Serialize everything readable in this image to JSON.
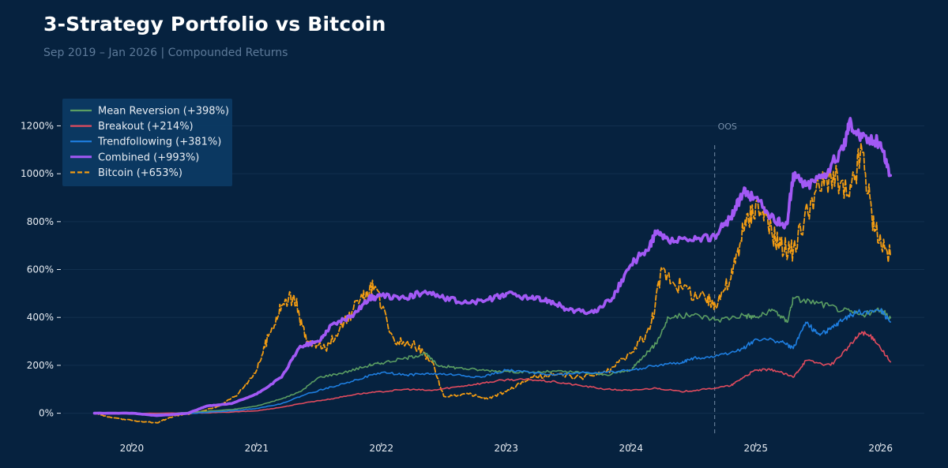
{
  "header": {
    "title": "3-Strategy Portfolio vs Bitcoin",
    "subtitle": "Sep 2019 – Jan 2026 | Compounded Returns"
  },
  "chart_data": {
    "type": "line",
    "title": "3-Strategy Portfolio vs Bitcoin",
    "subtitle": "Sep 2019 – Jan 2026 | Compounded Returns",
    "xlabel": "",
    "ylabel": "",
    "x_unit": "year",
    "xlim": [
      2019.45,
      2026.35
    ],
    "ylim": [
      -120,
      1330
    ],
    "x_ticks": [
      2020,
      2021,
      2022,
      2023,
      2024,
      2025,
      2026
    ],
    "x_tick_labels": [
      "2020",
      "2021",
      "2022",
      "2023",
      "2024",
      "2025",
      "2026"
    ],
    "y_ticks": [
      0,
      200,
      400,
      600,
      800,
      1000,
      1200
    ],
    "y_tick_labels": [
      "0%",
      "200%",
      "400%",
      "600%",
      "800%",
      "1000%",
      "1200%"
    ],
    "grid": "horizontal",
    "legend_position": "top-left",
    "annotations": [
      {
        "type": "vertical-dashed-line",
        "x": 2024.67,
        "label": "OOS"
      }
    ],
    "series": [
      {
        "name": "Mean Reversion (+398%)",
        "color": "#5b9e63",
        "style": "solid",
        "x": [
          2019.7,
          2020.0,
          2020.2,
          2020.5,
          2020.8,
          2021.0,
          2021.2,
          2021.35,
          2021.5,
          2021.7,
          2021.9,
          2022.0,
          2022.2,
          2022.35,
          2022.45,
          2022.6,
          2022.8,
          2023.0,
          2023.2,
          2023.4,
          2023.6,
          2023.8,
          2024.0,
          2024.1,
          2024.2,
          2024.3,
          2024.5,
          2024.7,
          2024.9,
          2025.0,
          2025.15,
          2025.25,
          2025.3,
          2025.5,
          2025.7,
          2025.85,
          2026.0,
          2026.08
        ],
        "y": [
          0,
          0,
          -5,
          5,
          15,
          30,
          60,
          90,
          150,
          170,
          200,
          210,
          230,
          250,
          200,
          190,
          180,
          175,
          170,
          175,
          170,
          160,
          180,
          240,
          290,
          400,
          410,
          390,
          410,
          400,
          430,
          380,
          480,
          460,
          430,
          410,
          430,
          398
        ]
      },
      {
        "name": "Breakout (+214%)",
        "color": "#e14b5e",
        "style": "solid",
        "x": [
          2019.7,
          2020.0,
          2020.5,
          2020.8,
          2021.0,
          2021.2,
          2021.4,
          2021.6,
          2021.8,
          2022.0,
          2022.2,
          2022.4,
          2022.6,
          2022.8,
          2023.0,
          2023.2,
          2023.4,
          2023.6,
          2023.8,
          2024.0,
          2024.2,
          2024.4,
          2024.6,
          2024.8,
          2024.9,
          2025.0,
          2025.15,
          2025.3,
          2025.4,
          2025.6,
          2025.75,
          2025.85,
          2025.95,
          2026.08
        ],
        "y": [
          0,
          0,
          0,
          5,
          10,
          25,
          45,
          60,
          80,
          90,
          100,
          95,
          110,
          125,
          140,
          140,
          130,
          115,
          100,
          95,
          105,
          90,
          100,
          115,
          150,
          180,
          180,
          150,
          220,
          200,
          280,
          340,
          310,
          214
        ]
      },
      {
        "name": "Trendfollowing (+381%)",
        "color": "#1e7ee0",
        "style": "solid",
        "x": [
          2019.7,
          2020.0,
          2020.2,
          2020.5,
          2020.8,
          2021.0,
          2021.2,
          2021.4,
          2021.6,
          2021.8,
          2022.0,
          2022.2,
          2022.4,
          2022.6,
          2022.8,
          2023.0,
          2023.2,
          2023.4,
          2023.6,
          2023.8,
          2024.0,
          2024.2,
          2024.4,
          2024.5,
          2024.7,
          2024.9,
          2025.0,
          2025.2,
          2025.3,
          2025.4,
          2025.5,
          2025.6,
          2025.7,
          2025.8,
          2026.0,
          2026.08
        ],
        "y": [
          0,
          0,
          -5,
          0,
          10,
          20,
          40,
          80,
          110,
          140,
          170,
          160,
          165,
          160,
          150,
          180,
          170,
          160,
          170,
          170,
          180,
          200,
          210,
          230,
          240,
          270,
          310,
          300,
          270,
          380,
          330,
          350,
          390,
          420,
          430,
          381
        ]
      },
      {
        "name": "Combined (+993%)",
        "color": "#a259f5",
        "style": "solid",
        "x": [
          2019.7,
          2020.0,
          2020.2,
          2020.45,
          2020.6,
          2020.8,
          2021.0,
          2021.2,
          2021.35,
          2021.5,
          2021.6,
          2021.75,
          2021.9,
          2022.0,
          2022.2,
          2022.35,
          2022.5,
          2022.7,
          2022.9,
          2023.0,
          2023.2,
          2023.35,
          2023.5,
          2023.7,
          2023.85,
          2024.0,
          2024.15,
          2024.2,
          2024.3,
          2024.5,
          2024.67,
          2024.8,
          2024.9,
          2025.0,
          2025.15,
          2025.25,
          2025.3,
          2025.4,
          2025.55,
          2025.7,
          2025.75,
          2025.85,
          2026.0,
          2026.08
        ],
        "y": [
          0,
          0,
          -10,
          0,
          30,
          40,
          80,
          150,
          280,
          300,
          370,
          400,
          480,
          490,
          480,
          510,
          480,
          460,
          480,
          500,
          480,
          470,
          430,
          420,
          480,
          620,
          700,
          750,
          720,
          720,
          740,
          820,
          920,
          900,
          800,
          790,
          1000,
          950,
          1000,
          1100,
          1220,
          1150,
          1130,
          993
        ]
      },
      {
        "name": "Bitcoin (+653%)",
        "color": "#f39c12",
        "style": "dashed",
        "x": [
          2019.7,
          2019.85,
          2020.0,
          2020.2,
          2020.35,
          2020.5,
          2020.7,
          2020.85,
          2021.0,
          2021.1,
          2021.2,
          2021.3,
          2021.4,
          2021.55,
          2021.7,
          2021.85,
          2021.95,
          2022.1,
          2022.25,
          2022.4,
          2022.5,
          2022.7,
          2022.85,
          2023.0,
          2023.2,
          2023.4,
          2023.6,
          2023.8,
          2024.0,
          2024.15,
          2024.25,
          2024.4,
          2024.6,
          2024.67,
          2024.8,
          2024.9,
          2025.0,
          2025.1,
          2025.2,
          2025.3,
          2025.45,
          2025.6,
          2025.75,
          2025.85,
          2025.95,
          2026.08
        ],
        "y": [
          0,
          -20,
          -30,
          -40,
          -10,
          0,
          30,
          80,
          180,
          330,
          450,
          490,
          300,
          270,
          380,
          480,
          530,
          310,
          290,
          220,
          70,
          80,
          60,
          90,
          150,
          160,
          150,
          170,
          250,
          350,
          600,
          530,
          470,
          460,
          560,
          760,
          880,
          780,
          700,
          680,
          900,
          1000,
          900,
          1100,
          760,
          653
        ]
      }
    ]
  }
}
